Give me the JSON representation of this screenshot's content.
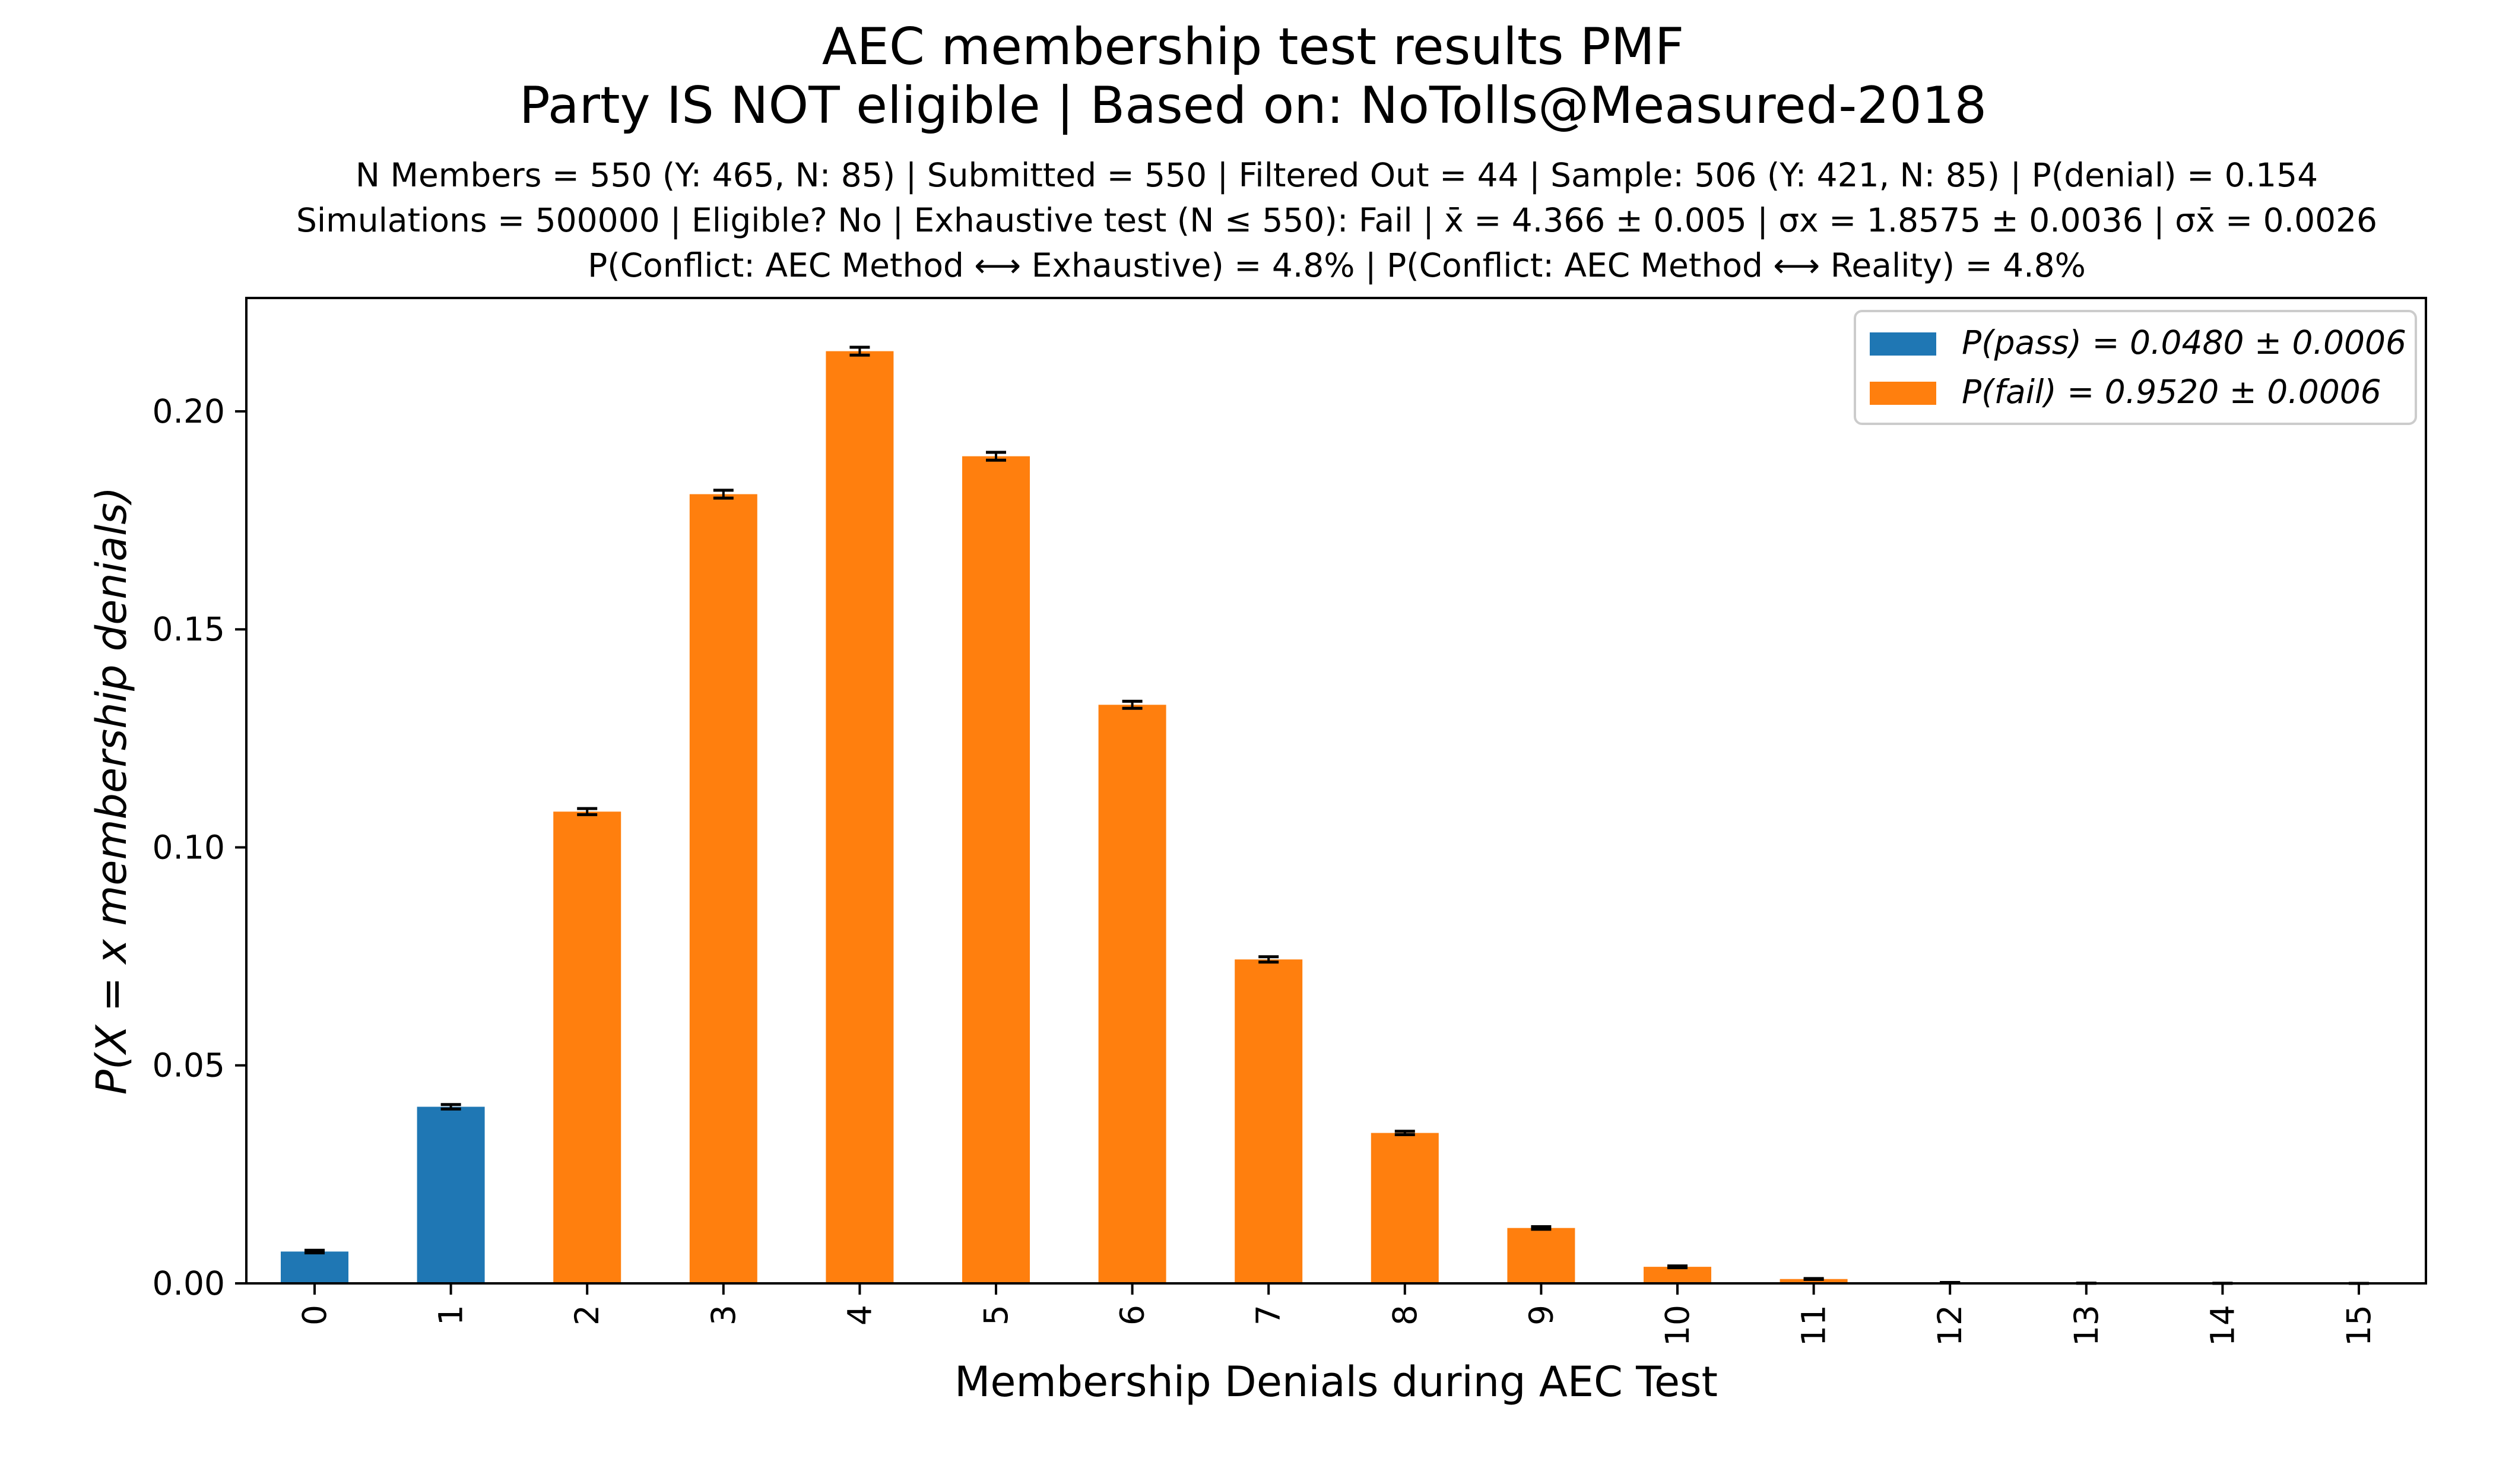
{
  "chart_data": {
    "type": "bar",
    "title_lines": [
      "AEC membership test results PMF",
      "Party IS NOT eligible | Based on: NoTolls@Measured-2018"
    ],
    "subtitle_lines": [
      "N Members = 550 (Y: 465, N: 85) | Submitted = 550 | Filtered Out = 44 | Sample: 506 (Y: 421, N: 85) | P(denial) = 0.154",
      "Simulations = 500000 | Eligible? No | Exhaustive test (N ≤ 550): Fail | x̄ = 4.366 ± 0.005 | σx = 1.8575 ± 0.0036 | σx̄ = 0.0026",
      "P(Conflict: AEC Method ⟷ Exhaustive) = 4.8% | P(Conflict: AEC Method ⟷ Reality) = 4.8%"
    ],
    "xlabel": "Membership Denials during AEC Test",
    "ylabel": "P(X = x membership denials)",
    "categories": [
      "0",
      "1",
      "2",
      "3",
      "4",
      "5",
      "6",
      "7",
      "8",
      "9",
      "10",
      "11",
      "12",
      "13",
      "14",
      "15"
    ],
    "values": [
      0.0073,
      0.0405,
      0.1082,
      0.181,
      0.2138,
      0.1897,
      0.1327,
      0.0743,
      0.0345,
      0.0127,
      0.0038,
      0.001,
      0.0002,
      4e-05,
      1e-05,
      0.0
    ],
    "errors": [
      0.0003,
      0.0005,
      0.0007,
      0.0009,
      0.0009,
      0.0009,
      0.0008,
      0.0006,
      0.0004,
      0.0003,
      0.0002,
      0.0001,
      0.0,
      0.0,
      0.0,
      0.0
    ],
    "bar_groups": [
      "pass",
      "pass",
      "fail",
      "fail",
      "fail",
      "fail",
      "fail",
      "fail",
      "fail",
      "fail",
      "fail",
      "fail",
      "fail",
      "fail",
      "fail",
      "fail"
    ],
    "ylim": [
      0,
      0.226
    ],
    "yticks": [
      0.0,
      0.05,
      0.1,
      0.15,
      0.2
    ],
    "ytick_labels": [
      "0.00",
      "0.05",
      "0.10",
      "0.15",
      "0.20"
    ],
    "grid": false,
    "legend_position": "top-right",
    "legend": [
      {
        "key": "pass",
        "label": "P(pass) = 0.0480 ± 0.0006",
        "color": "#1f77b4"
      },
      {
        "key": "fail",
        "label": "P(fail) = 0.9520 ± 0.0006",
        "color": "#ff7f0e"
      }
    ],
    "colors": {
      "pass": "#1f77b4",
      "fail": "#ff7f0e",
      "error_bar": "#000000"
    }
  }
}
